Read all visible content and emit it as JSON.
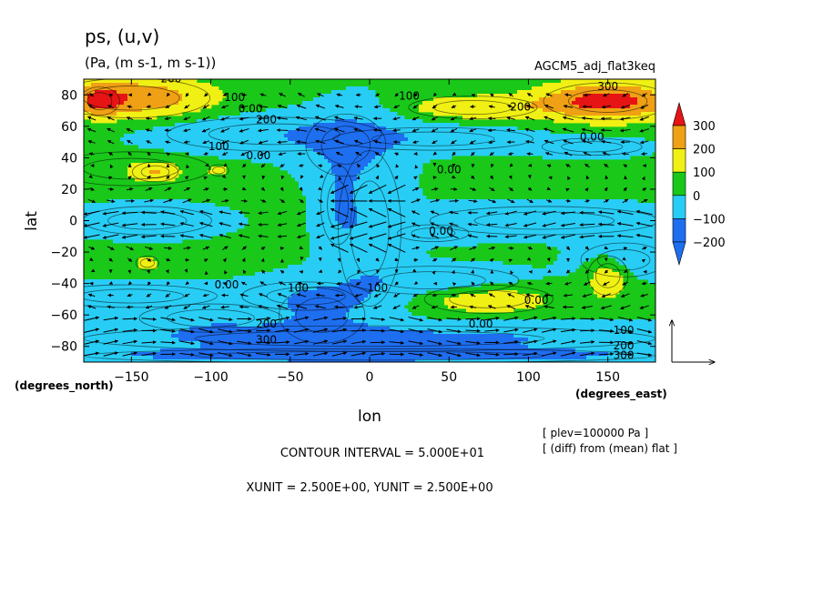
{
  "title": "ps, (u,v)",
  "units": "(Pa, (m s-1, m s-1))",
  "experiment": "AGCM5_adj_flat3keq",
  "note_plev": "[ plev=100000 Pa ]",
  "note_diff": "[ (diff) from (mean) flat ]",
  "contour_interval": "CONTOUR INTERVAL = 5.000E+01",
  "vector_units": "XUNIT = 2.500E+00, YUNIT = 2.500E+00",
  "chart_data": {
    "type": "heatmap",
    "title": "ps, (u,v)",
    "xlabel": "lon",
    "ylabel": "lat",
    "x_unit_label": "(degrees_east)",
    "y_unit_label": "(degrees_north)",
    "xlim": [
      -180,
      180
    ],
    "ylim": [
      -90,
      90
    ],
    "x_ticks": [
      -150,
      -100,
      -50,
      0,
      50,
      100,
      150
    ],
    "x_tick_labels": [
      "−150",
      "−100",
      "−50",
      "0",
      "50",
      "100",
      "150"
    ],
    "y_ticks": [
      -80,
      -60,
      -40,
      -20,
      0,
      20,
      40,
      60,
      80
    ],
    "y_tick_labels": [
      "−80",
      "−60",
      "−40",
      "−20",
      "0",
      "20",
      "40",
      "60",
      "80"
    ],
    "colorbar": {
      "levels": [
        -200,
        -100,
        0,
        100,
        200,
        300
      ],
      "labels": [
        "−200",
        "−100",
        "0",
        "100",
        "200",
        "300"
      ],
      "colors": [
        "#1e6ef0",
        "#28cdf5",
        "#19c819",
        "#f0f014",
        "#f0a014",
        "#e61414"
      ],
      "extend": "both"
    },
    "contour_labels": [
      {
        "lon": -125,
        "lat": 88,
        "text": "200"
      },
      {
        "lon": -85,
        "lat": 76,
        "text": "100"
      },
      {
        "lon": -75,
        "lat": 69,
        "text": "0.00"
      },
      {
        "lon": -65,
        "lat": 62,
        "text": "200"
      },
      {
        "lon": -95,
        "lat": 45,
        "text": "100"
      },
      {
        "lon": -70,
        "lat": 39,
        "text": "0.00"
      },
      {
        "lon": 25,
        "lat": 77,
        "text": "100"
      },
      {
        "lon": 95,
        "lat": 70,
        "text": "200"
      },
      {
        "lon": 150,
        "lat": 83,
        "text": "300"
      },
      {
        "lon": 140,
        "lat": 51,
        "text": "0.00"
      },
      {
        "lon": 50,
        "lat": 30,
        "text": "0.00"
      },
      {
        "lon": 45,
        "lat": -9,
        "text": "0.00"
      },
      {
        "lon": -90,
        "lat": -43,
        "text": "0.00"
      },
      {
        "lon": -45,
        "lat": -45,
        "text": "100"
      },
      {
        "lon": 5,
        "lat": -45,
        "text": "100"
      },
      {
        "lon": 105,
        "lat": -53,
        "text": "0.00"
      },
      {
        "lon": 70,
        "lat": -68,
        "text": "0.00"
      },
      {
        "lon": -65,
        "lat": -68,
        "text": "200"
      },
      {
        "lon": -65,
        "lat": -78,
        "text": "300"
      },
      {
        "lon": 160,
        "lat": -72,
        "text": "100"
      },
      {
        "lon": 160,
        "lat": -82,
        "text": "200"
      },
      {
        "lon": 160,
        "lat": -88,
        "text": "300"
      }
    ],
    "reference_vector": {
      "u": 2.5,
      "v": 2.5
    }
  }
}
